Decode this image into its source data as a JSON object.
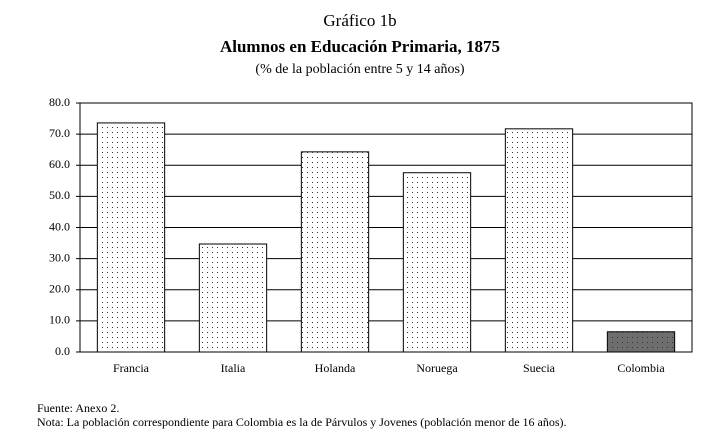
{
  "chart_data": {
    "type": "bar",
    "title": "Gráfico 1b",
    "subtitle": "Alumnos en Educación Primaria, 1875",
    "unit_note": "(% de la población entre 5 y 14 años)",
    "categories": [
      "Francia",
      "Italia",
      "Holanda",
      "Noruega",
      "Suecia",
      "Colombia"
    ],
    "values": [
      73.6,
      34.7,
      64.3,
      57.6,
      71.7,
      6.5
    ],
    "colors": [
      "#ffffff",
      "#ffffff",
      "#ffffff",
      "#ffffff",
      "#ffffff",
      "#6e6e6e"
    ],
    "ylim": [
      0,
      80
    ],
    "yticks": [
      {
        "value": 0,
        "label": "0.0"
      },
      {
        "value": 10,
        "label": "10.0"
      },
      {
        "value": 20,
        "label": "20.0"
      },
      {
        "value": 30,
        "label": "30.0"
      },
      {
        "value": 40,
        "label": "40.0"
      },
      {
        "value": 50,
        "label": "50.0"
      },
      {
        "value": 60,
        "label": "60.0"
      },
      {
        "value": 70,
        "label": "70.0"
      },
      {
        "value": 80,
        "label": "80.0"
      }
    ],
    "grid": true,
    "notes": [
      "Fuente: Anexo 2.",
      "Nota: La población correspondiente para Colombia es la de Párvulos y Jovenes (población menor de 16 años)."
    ]
  }
}
